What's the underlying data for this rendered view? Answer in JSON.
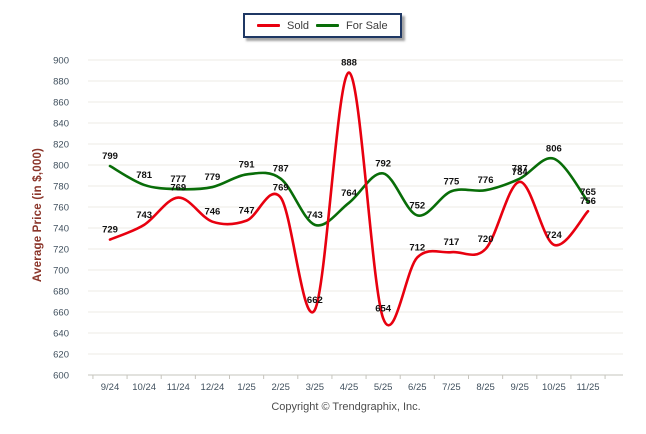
{
  "legend": {
    "position": "top-center",
    "items": [
      {
        "label": "Sold",
        "color": "#e8000f"
      },
      {
        "label": "For Sale",
        "color": "#086d08"
      }
    ]
  },
  "footer": {
    "copyright": "Copyright © Trendgraphix, Inc."
  },
  "chart_data": {
    "type": "line",
    "title": "",
    "xlabel": "",
    "ylabel": "Average Price (in $,000)",
    "categories": [
      "9/24",
      "10/24",
      "11/24",
      "12/24",
      "1/25",
      "2/25",
      "3/25",
      "4/25",
      "5/25",
      "6/25",
      "7/25",
      "8/25",
      "9/25",
      "10/25",
      "11/25"
    ],
    "series": [
      {
        "name": "Sold",
        "color": "#e8000f",
        "values": [
          729,
          743,
          769,
          746,
          747,
          769,
          662,
          888,
          654,
          712,
          717,
          720,
          784,
          724,
          756
        ]
      },
      {
        "name": "For Sale",
        "color": "#086d08",
        "values": [
          799,
          781,
          777,
          779,
          791,
          787,
          743,
          764,
          792,
          752,
          775,
          776,
          787,
          806,
          765
        ]
      }
    ],
    "ylim": [
      600,
      900
    ],
    "ytick_step": 20,
    "yticks": [
      600,
      620,
      640,
      660,
      680,
      700,
      720,
      740,
      760,
      780,
      800,
      820,
      840,
      860,
      880,
      900
    ],
    "grid": true,
    "smooth": true,
    "data_labels": true,
    "legend_position": "top-center",
    "colors": {
      "grid_line": "#ecebe4",
      "axis_line": "#c6c4bd",
      "tick_label": "#40505e",
      "data_label": "#121212",
      "y_title": "#8b352a",
      "legend_border": "#1f3864"
    }
  }
}
